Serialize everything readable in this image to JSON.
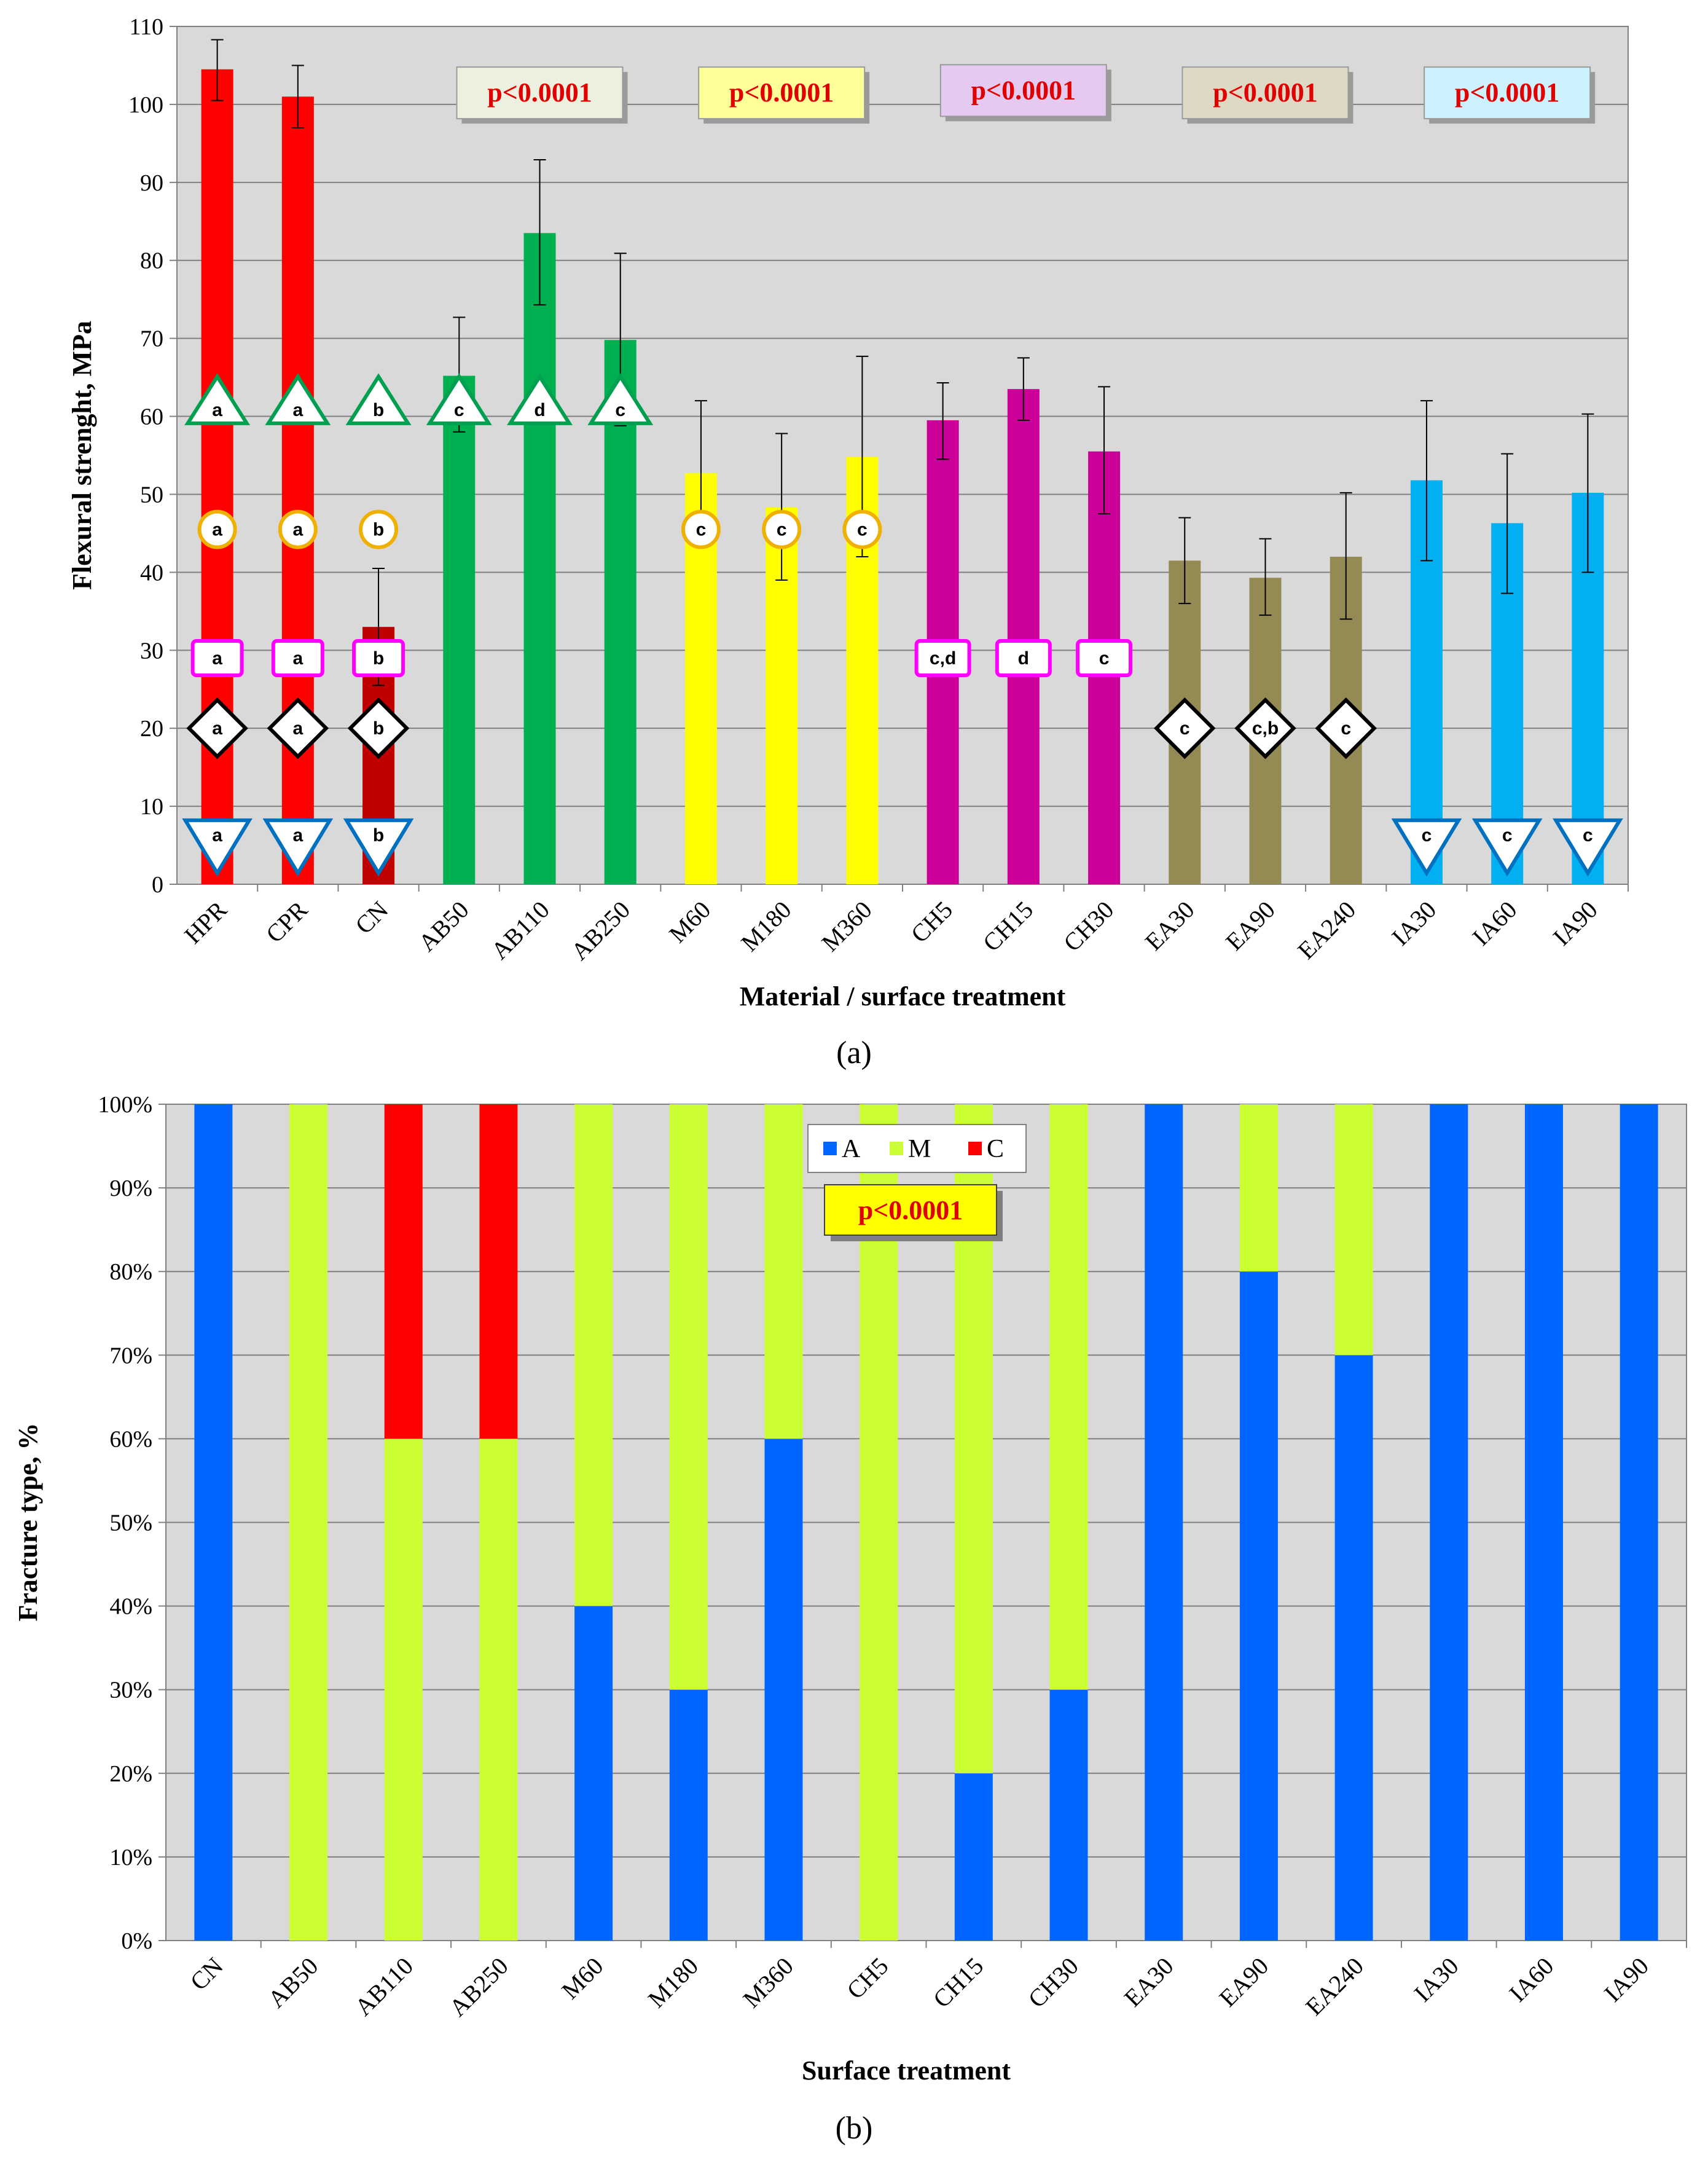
{
  "colors": {
    "plot_bg": "#d9d9d9",
    "grid": "#808080",
    "HPR": "#ff0000",
    "CPR": "#ff0000",
    "CN": "#c00000",
    "AB": "#00b050",
    "M": "#ffff00",
    "CH": "#cc0099",
    "EA": "#948a54",
    "IA": "#00b0f0",
    "A": "#0066ff",
    "Mfrac": "#ccff33",
    "C": "#ff0000",
    "p_AB": "#ebf1de",
    "p_M": "#ffff99",
    "p_CH": "#e4c9f0",
    "p_EA": "#ddd9c4",
    "p_IA": "#ccf2ff",
    "p_b": "#ffff00",
    "triangle": "#00a050",
    "circle": "#f0b000",
    "square": "#ff00ff",
    "diamond": "#000000",
    "invtri": "#0070c0"
  },
  "chart_data": [
    {
      "id": "a",
      "type": "bar",
      "caption": "(a)",
      "ylabel": "Flexural strenght, MPa",
      "xlabel": "Material / surface treatment",
      "ylim": [
        0,
        110
      ],
      "yticks": [
        "0",
        "10",
        "20",
        "30",
        "40",
        "50",
        "60",
        "70",
        "80",
        "90",
        "100",
        "110"
      ],
      "grid": true,
      "categories": [
        "HPR",
        "CPR",
        "CN",
        "AB50",
        "AB110",
        "AB250",
        "M60",
        "M180",
        "M360",
        "CH5",
        "CH15",
        "CH30",
        "EA30",
        "EA90",
        "EA240",
        "IA30",
        "IA60",
        "IA90"
      ],
      "groups": [
        "HPR",
        "CPR",
        "CN",
        "AB",
        "AB",
        "AB",
        "M",
        "M",
        "M",
        "CH",
        "CH",
        "CH",
        "EA",
        "EA",
        "EA",
        "IA",
        "IA",
        "IA"
      ],
      "values": [
        104.5,
        101,
        33,
        65.2,
        83.5,
        69.8,
        52.7,
        48.3,
        54.8,
        59.5,
        63.5,
        55.5,
        41.5,
        39.3,
        42,
        51.8,
        46.3,
        50.2
      ],
      "error_lower": [
        100.5,
        97,
        25.5,
        58,
        74.3,
        58.8,
        43.2,
        39,
        42,
        54.5,
        59.5,
        47.5,
        36,
        34.5,
        34,
        41.5,
        37.3,
        40
      ],
      "error_upper": [
        108.3,
        105,
        40.5,
        72.7,
        92.9,
        80.9,
        62,
        57.8,
        67.7,
        64.3,
        67.5,
        63.8,
        47,
        44.3,
        50.2,
        62,
        55.2,
        60.3
      ],
      "pvalue_boxes": [
        {
          "text": "p<0.0001",
          "group": "AB"
        },
        {
          "text": "p<0.0001",
          "group": "M"
        },
        {
          "text": "p<0.0001",
          "group": "CH"
        },
        {
          "text": "p<0.0001",
          "group": "EA"
        },
        {
          "text": "p<0.0001",
          "group": "IA"
        }
      ],
      "annotations": {
        "triangle": {
          "y": 61,
          "labels": [
            "a",
            "a",
            "b",
            "c",
            "d",
            "c"
          ],
          "cat_index": [
            0,
            1,
            2,
            3,
            4,
            5
          ]
        },
        "circle": {
          "y": 45.5,
          "labels": [
            "a",
            "a",
            "b",
            "c",
            "c",
            "c"
          ],
          "cat_index": [
            0,
            1,
            2,
            6,
            7,
            8
          ]
        },
        "square": {
          "y": 29,
          "labels": [
            "a",
            "a",
            "b",
            "c,d",
            "d",
            "c"
          ],
          "cat_index": [
            0,
            1,
            2,
            9,
            10,
            11
          ]
        },
        "diamond": {
          "y": 20,
          "labels": [
            "a",
            "a",
            "b",
            "c",
            "c,b",
            "c"
          ],
          "cat_index": [
            0,
            1,
            2,
            12,
            13,
            14
          ]
        },
        "invtri": {
          "y": 6,
          "labels": [
            "a",
            "a",
            "b",
            "c",
            "c",
            "c"
          ],
          "cat_index": [
            0,
            1,
            2,
            15,
            16,
            17
          ]
        }
      }
    },
    {
      "id": "b",
      "type": "bar",
      "stacked": true,
      "caption": "(b)",
      "ylabel": "Fracture type, %",
      "xlabel": "Surface treatment",
      "ylim": [
        0,
        100
      ],
      "yticks": [
        "0%",
        "10%",
        "20%",
        "30%",
        "40%",
        "50%",
        "60%",
        "70%",
        "80%",
        "90%",
        "100%"
      ],
      "grid": true,
      "categories": [
        "CN",
        "AB50",
        "AB110",
        "AB250",
        "M60",
        "M180",
        "M360",
        "CH5",
        "CH15",
        "CH30",
        "EA30",
        "EA90",
        "EA240",
        "IA30",
        "IA60",
        "IA90"
      ],
      "series": [
        {
          "name": "A",
          "values": [
            100,
            0,
            0,
            0,
            40,
            30,
            60,
            0,
            20,
            30,
            100,
            80,
            70,
            100,
            100,
            100
          ]
        },
        {
          "name": "M",
          "values": [
            0,
            100,
            60,
            60,
            60,
            70,
            40,
            100,
            80,
            70,
            0,
            20,
            30,
            0,
            0,
            0
          ]
        },
        {
          "name": "C",
          "values": [
            0,
            0,
            40,
            40,
            0,
            0,
            0,
            0,
            0,
            0,
            0,
            0,
            0,
            0,
            0,
            0
          ]
        }
      ],
      "legend": [
        "A",
        "M",
        "C"
      ],
      "legend_position": "top-center",
      "pvalue_box": "p<0.0001"
    }
  ]
}
